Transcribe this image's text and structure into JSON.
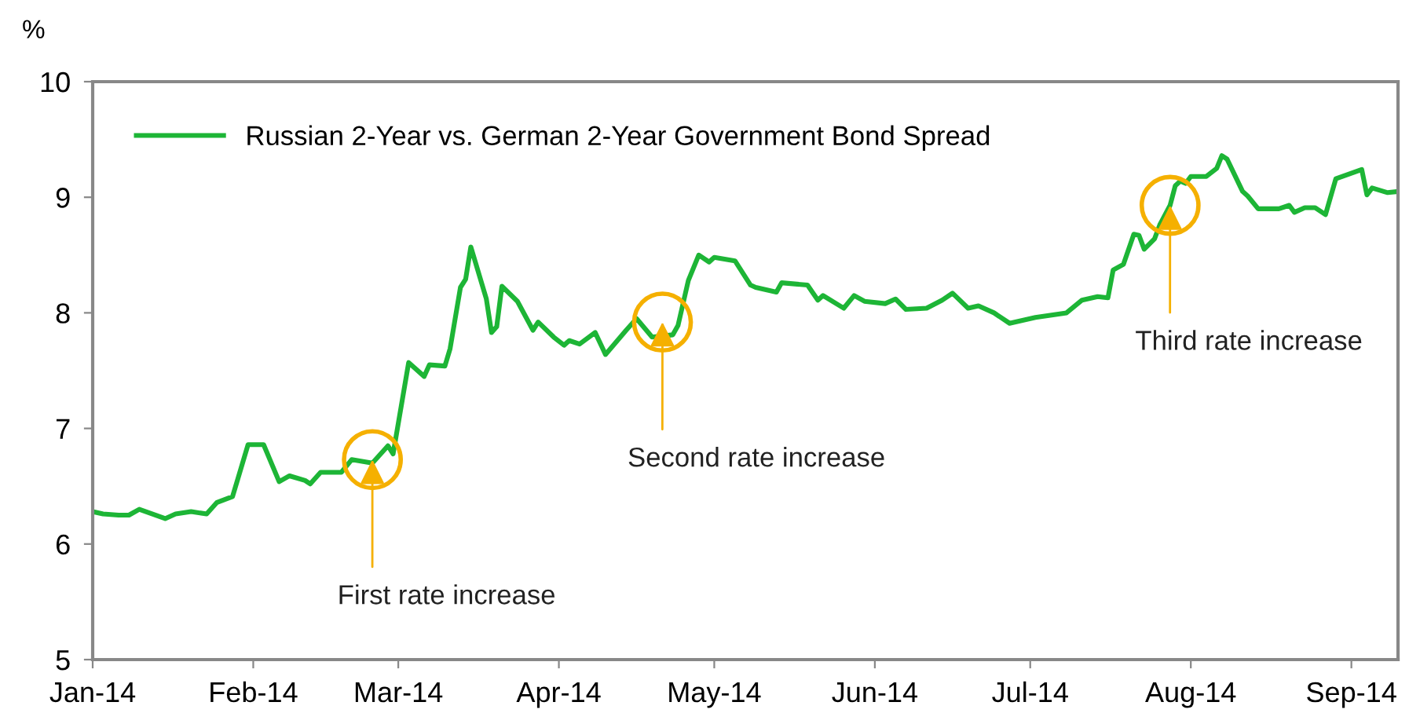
{
  "chart_data": {
    "type": "line",
    "ylabel": "%",
    "x": [
      "2014-01-01",
      "2014-01-03",
      "2014-01-06",
      "2014-01-08",
      "2014-01-10",
      "2014-01-15",
      "2014-01-17",
      "2014-01-20",
      "2014-01-23",
      "2014-01-25",
      "2014-01-28",
      "2014-01-29",
      "2014-01-31",
      "2014-02-03",
      "2014-02-06",
      "2014-02-08",
      "2014-02-11",
      "2014-02-12",
      "2014-02-14",
      "2014-02-18",
      "2014-02-20",
      "2014-02-24",
      "2014-02-27",
      "2014-02-28",
      "2014-03-03",
      "2014-03-06",
      "2014-03-07",
      "2014-03-10",
      "2014-03-11",
      "2014-03-13",
      "2014-03-14",
      "2014-03-15",
      "2014-03-18",
      "2014-03-19",
      "2014-03-20",
      "2014-03-21",
      "2014-03-24",
      "2014-03-27",
      "2014-03-28",
      "2014-03-31",
      "2014-04-02",
      "2014-04-03",
      "2014-04-05",
      "2014-04-08",
      "2014-04-10",
      "2014-04-14",
      "2014-04-16",
      "2014-04-19",
      "2014-04-23",
      "2014-04-24",
      "2014-04-26",
      "2014-04-28",
      "2014-04-30",
      "2014-05-01",
      "2014-05-05",
      "2014-05-08",
      "2014-05-09",
      "2014-05-13",
      "2014-05-14",
      "2014-05-19",
      "2014-05-21",
      "2014-05-22",
      "2014-05-26",
      "2014-05-28",
      "2014-05-30",
      "2014-06-03",
      "2014-06-05",
      "2014-06-07",
      "2014-06-11",
      "2014-06-14",
      "2014-06-16",
      "2014-06-19",
      "2014-06-21",
      "2014-06-24",
      "2014-06-27",
      "2014-07-01",
      "2014-07-02",
      "2014-07-08",
      "2014-07-11",
      "2014-07-14",
      "2014-07-16",
      "2014-07-17",
      "2014-07-19",
      "2014-07-21",
      "2014-07-22",
      "2014-07-23",
      "2014-07-25",
      "2014-07-26",
      "2014-07-28",
      "2014-07-29",
      "2014-07-30",
      "2014-07-31",
      "2014-08-01",
      "2014-08-04",
      "2014-08-06",
      "2014-08-07",
      "2014-08-08",
      "2014-08-11",
      "2014-08-12",
      "2014-08-14",
      "2014-08-18",
      "2014-08-20",
      "2014-08-21",
      "2014-08-23",
      "2014-08-25",
      "2014-08-27",
      "2014-08-29",
      "2014-09-03",
      "2014-09-04",
      "2014-09-05",
      "2014-09-08",
      "2014-09-10"
    ],
    "series": [
      {
        "name": "Russian 2-Year vs. German 2-Year Government Bond Spread",
        "color": "#1db536",
        "values": [
          6.28,
          6.26,
          6.25,
          6.25,
          6.3,
          6.22,
          6.26,
          6.28,
          6.26,
          6.36,
          6.41,
          6.56,
          6.86,
          6.86,
          6.54,
          6.59,
          6.55,
          6.52,
          6.62,
          6.62,
          6.73,
          6.7,
          6.85,
          6.78,
          7.57,
          7.45,
          7.55,
          7.54,
          7.69,
          8.22,
          8.29,
          8.57,
          8.12,
          7.83,
          7.88,
          8.23,
          8.1,
          7.85,
          7.92,
          7.79,
          7.72,
          7.76,
          7.73,
          7.83,
          7.64,
          7.85,
          7.95,
          7.79,
          7.81,
          7.89,
          8.28,
          8.5,
          8.44,
          8.48,
          8.45,
          8.24,
          8.22,
          8.18,
          8.26,
          8.24,
          8.11,
          8.15,
          8.04,
          8.15,
          8.1,
          8.08,
          8.12,
          8.03,
          8.04,
          8.11,
          8.17,
          8.04,
          8.06,
          8.0,
          7.91,
          7.95,
          7.96,
          8.0,
          8.11,
          8.14,
          8.13,
          8.37,
          8.42,
          8.68,
          8.67,
          8.55,
          8.64,
          8.76,
          8.93,
          9.1,
          9.14,
          9.12,
          9.18,
          9.18,
          9.25,
          9.36,
          9.33,
          9.05,
          9.01,
          8.9,
          8.9,
          8.93,
          8.87,
          8.91,
          8.91,
          8.85,
          9.16,
          9.24,
          9.02,
          9.08,
          9.04,
          9.05
        ]
      }
    ],
    "xlim": [
      "2014-01-01",
      "2014-09-10"
    ],
    "xticks": [
      {
        "value": "2014-01-01",
        "label": "Jan-14"
      },
      {
        "value": "2014-02-01",
        "label": "Feb-14"
      },
      {
        "value": "2014-03-01",
        "label": "Mar-14"
      },
      {
        "value": "2014-04-01",
        "label": "Apr-14"
      },
      {
        "value": "2014-05-01",
        "label": "May-14"
      },
      {
        "value": "2014-06-01",
        "label": "Jun-14"
      },
      {
        "value": "2014-07-01",
        "label": "Jul-14"
      },
      {
        "value": "2014-08-01",
        "label": "Aug-14"
      },
      {
        "value": "2014-09-01",
        "label": "Sep-14"
      }
    ],
    "ylim": [
      5,
      10
    ],
    "yticks": [
      5,
      6,
      7,
      8,
      9,
      10
    ],
    "grid": false,
    "legend": "top left",
    "line_style": "solid",
    "annotations": [
      {
        "text": "First rate increase",
        "x": "2014-02-24",
        "y": 6.73
      },
      {
        "text": "Second rate increase",
        "x": "2014-04-21",
        "y": 7.92
      },
      {
        "text": "Third rate increase",
        "x": "2014-07-28",
        "y": 8.93
      }
    ]
  }
}
